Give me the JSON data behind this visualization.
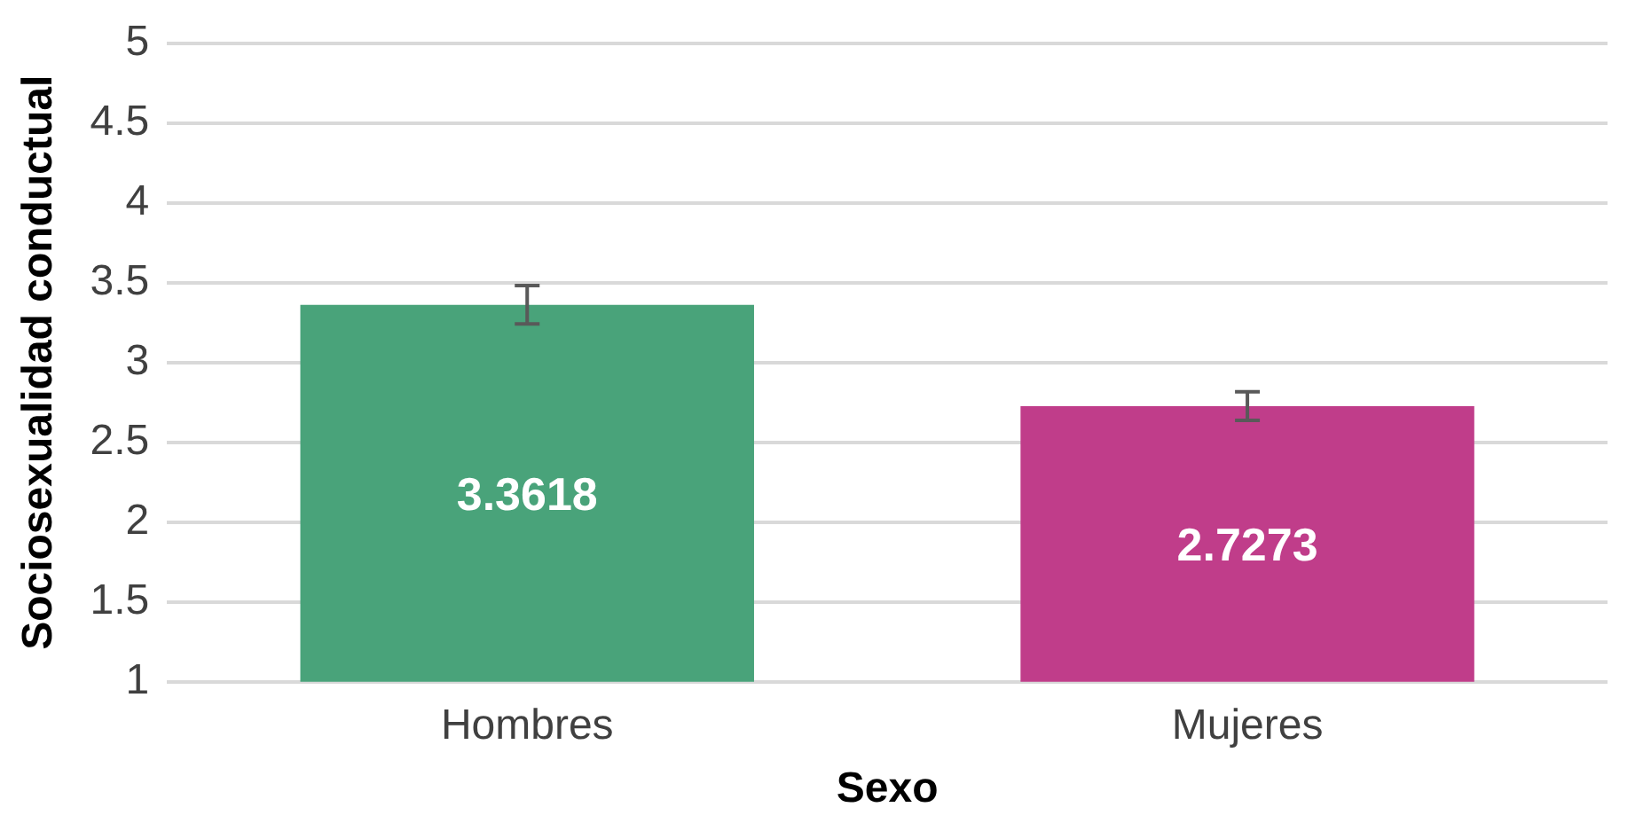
{
  "chart_data": {
    "type": "bar",
    "xlabel": "Sexo",
    "ylabel": "Sociosexualidad conductual",
    "categories": [
      "Hombres",
      "Mujeres"
    ],
    "values": [
      3.3618,
      2.7273
    ],
    "colors": [
      "#49a37a",
      "#c03d8a"
    ],
    "errors": [
      0.12,
      0.09
    ],
    "ylim": [
      1,
      5
    ],
    "yticks": [
      1,
      1.5,
      2,
      2.5,
      3,
      3.5,
      4,
      4.5,
      5
    ],
    "grid": "y",
    "legend": false,
    "data_labels": true
  }
}
